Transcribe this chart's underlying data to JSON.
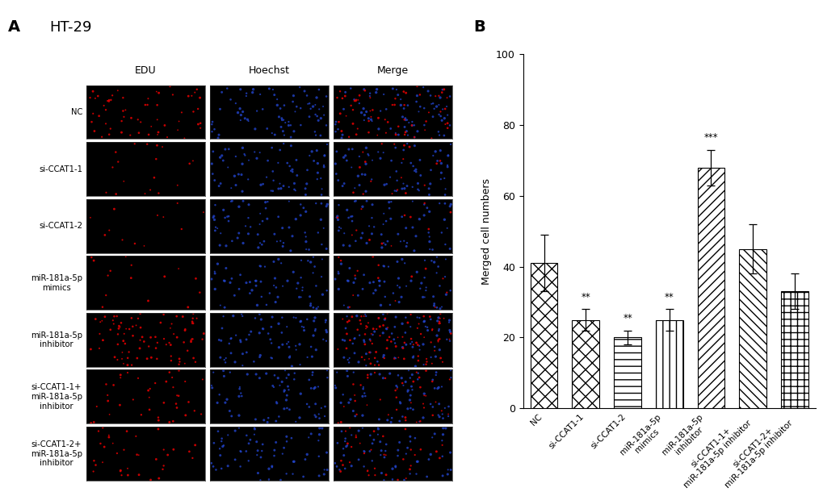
{
  "bar_values": [
    41,
    25,
    20,
    25,
    68,
    45,
    33
  ],
  "bar_errors": [
    8,
    3,
    2,
    3,
    5,
    7,
    5
  ],
  "significance": [
    "",
    "**",
    "**",
    "**",
    "***",
    "",
    ""
  ],
  "ylabel": "Merged cell numbers",
  "ylim": [
    0,
    100
  ],
  "yticks": [
    0,
    20,
    40,
    60,
    80,
    100
  ],
  "panel_b_label": "B",
  "panel_a_label": "A",
  "title_a": "HT-29",
  "fig_background": "#ffffff",
  "font_size_axis": 9,
  "font_size_panel": 13,
  "image_row_labels": [
    "NC",
    "si-CCAT1-1",
    "si-CCAT1-2",
    "miR-181a-5p\nmimics",
    "miR-181a-5p\ninhibitor",
    "si-CCAT1-1+\nmiR-181a-5p\ninhibitor",
    "si-CCAT1-2+\nmiR-181a-5p\ninhibitor"
  ],
  "image_col_labels": [
    "EDU",
    "Hoechst",
    "Merge"
  ],
  "edu_dot_counts": [
    60,
    18,
    12,
    15,
    90,
    40,
    35
  ],
  "hoechst_dot_counts": [
    80,
    75,
    70,
    65,
    80,
    72,
    68
  ],
  "bar_tick_labels": [
    "NC",
    "si-CCAT1-1",
    "si-CCAT1-2",
    "miR-181a-5p\nmimics",
    "miR-181a-5p\ninhibitor",
    "si-CCAT1-1+\nmiR-181a-5p inhibitor",
    "si-CCAT1-2+\nmiR-181a-5p inhibitor"
  ]
}
